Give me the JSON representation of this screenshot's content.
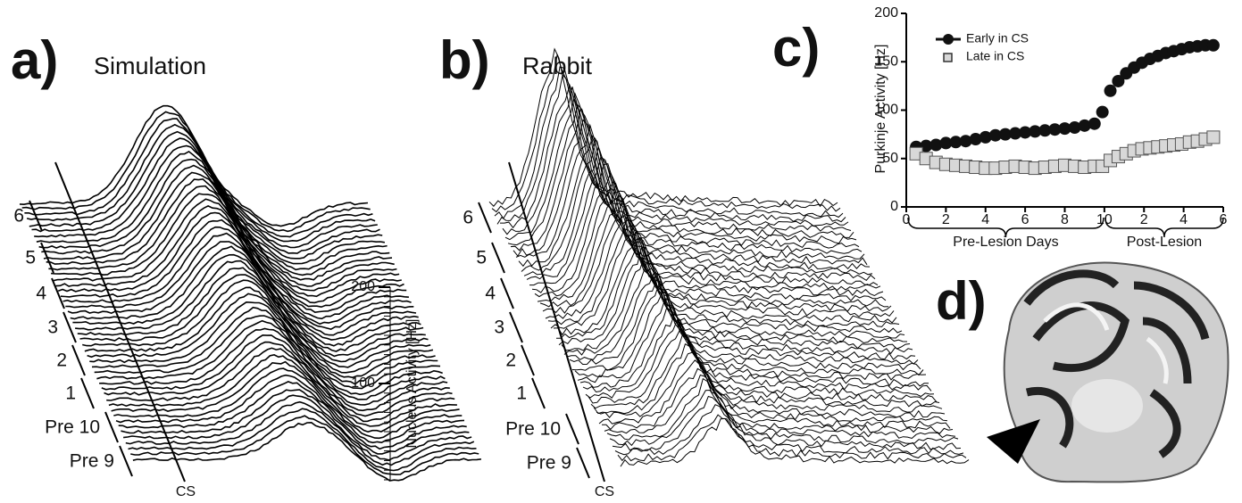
{
  "panel_a": {
    "label": "a)",
    "title": "Simulation",
    "row_labels": [
      "6",
      "5",
      "4",
      "3",
      "2",
      "1",
      "Pre 10",
      "Pre 9"
    ],
    "cs_label": "CS",
    "axis": {
      "label": "Nucleus Activity [Hz]",
      "ylim": [
        0,
        200
      ],
      "yticks": [
        100,
        200
      ]
    }
  },
  "panel_b": {
    "label": "b)",
    "title": "Rabbit",
    "row_labels": [
      "6",
      "5",
      "4",
      "3",
      "2",
      "1",
      "Pre 10",
      "Pre 9"
    ],
    "cs_label": "CS"
  },
  "chart_data": {
    "type": "scatter",
    "panel_label": "c)",
    "y_label": "Purkinje Activity [Hz]",
    "x_groups": [
      "Pre-Lesion Days",
      "Post-Lesion"
    ],
    "x": [
      0.5,
      1,
      1.5,
      2,
      2.5,
      3,
      3.5,
      4,
      4.5,
      5,
      5.5,
      6,
      6.5,
      7,
      7.5,
      8,
      8.5,
      9,
      9.5,
      9.9,
      10.3,
      10.7,
      11.1,
      11.5,
      11.9,
      12.3,
      12.7,
      13.1,
      13.5,
      13.9,
      14.3,
      14.7,
      15.1,
      15.5
    ],
    "series": [
      {
        "name": "Early in CS",
        "color": "#111111",
        "marker": "circle",
        "values": [
          62,
          63,
          64,
          66,
          67,
          68,
          70,
          72,
          74,
          75,
          76,
          77,
          78,
          79,
          80,
          81,
          82,
          84,
          86,
          98,
          120,
          130,
          138,
          144,
          149,
          153,
          156,
          159,
          161,
          163,
          165,
          166,
          167,
          167
        ]
      },
      {
        "name": "Late in CS",
        "color": "#d8d8d8",
        "marker": "square",
        "values": [
          55,
          50,
          46,
          44,
          43,
          42,
          41,
          40,
          40,
          41,
          42,
          41,
          40,
          41,
          42,
          43,
          42,
          41,
          42,
          42,
          48,
          52,
          55,
          58,
          60,
          61,
          62,
          63,
          64,
          65,
          67,
          68,
          70,
          72
        ]
      }
    ],
    "xlim": [
      0,
      16
    ],
    "xticks": [
      0,
      2,
      4,
      6,
      8,
      10,
      {
        "value": 12,
        "label": "2"
      },
      {
        "value": 14,
        "label": "4"
      },
      {
        "value": 16,
        "label": "6"
      }
    ],
    "ylim": [
      0,
      200
    ],
    "yticks": [
      0,
      50,
      100,
      150,
      200
    ]
  },
  "panel_d": {
    "label": "d)"
  }
}
